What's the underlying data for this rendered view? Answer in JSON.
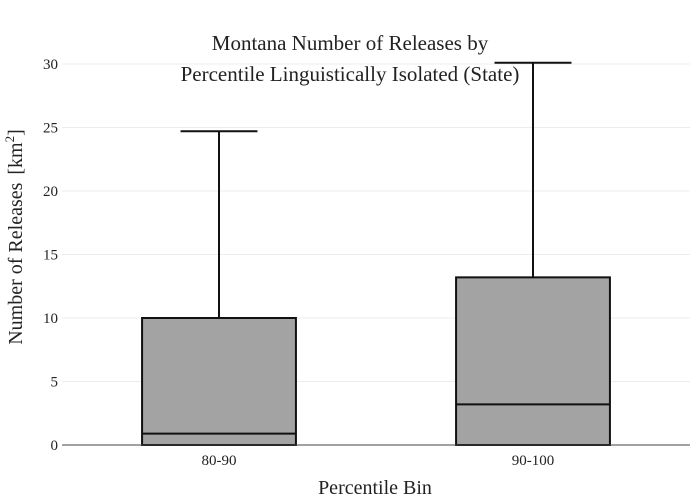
{
  "chart_data": {
    "type": "box",
    "title_lines": [
      "Montana Number of Releases by",
      "Percentile Linguistically Isolated (State)"
    ],
    "xlabel": "Percentile Bin",
    "ylabel": "Number of Releases",
    "ylabel_unit": "[km",
    "ylabel_unit_sup": "2",
    "ylabel_unit_close": "]",
    "ylim": [
      0,
      30
    ],
    "yticks": [
      0,
      5,
      10,
      15,
      20,
      25,
      30
    ],
    "grid": true,
    "categories": [
      "80-90",
      "90-100"
    ],
    "boxes": [
      {
        "category": "80-90",
        "min": 0,
        "q1": 0,
        "median": 0.9,
        "q3": 10,
        "max": 24.7
      },
      {
        "category": "90-100",
        "min": 0,
        "q1": 0,
        "median": 3.2,
        "q3": 13.2,
        "max": 30.1
      }
    ],
    "box_color": "#a3a3a3",
    "line_color": "#111111"
  }
}
